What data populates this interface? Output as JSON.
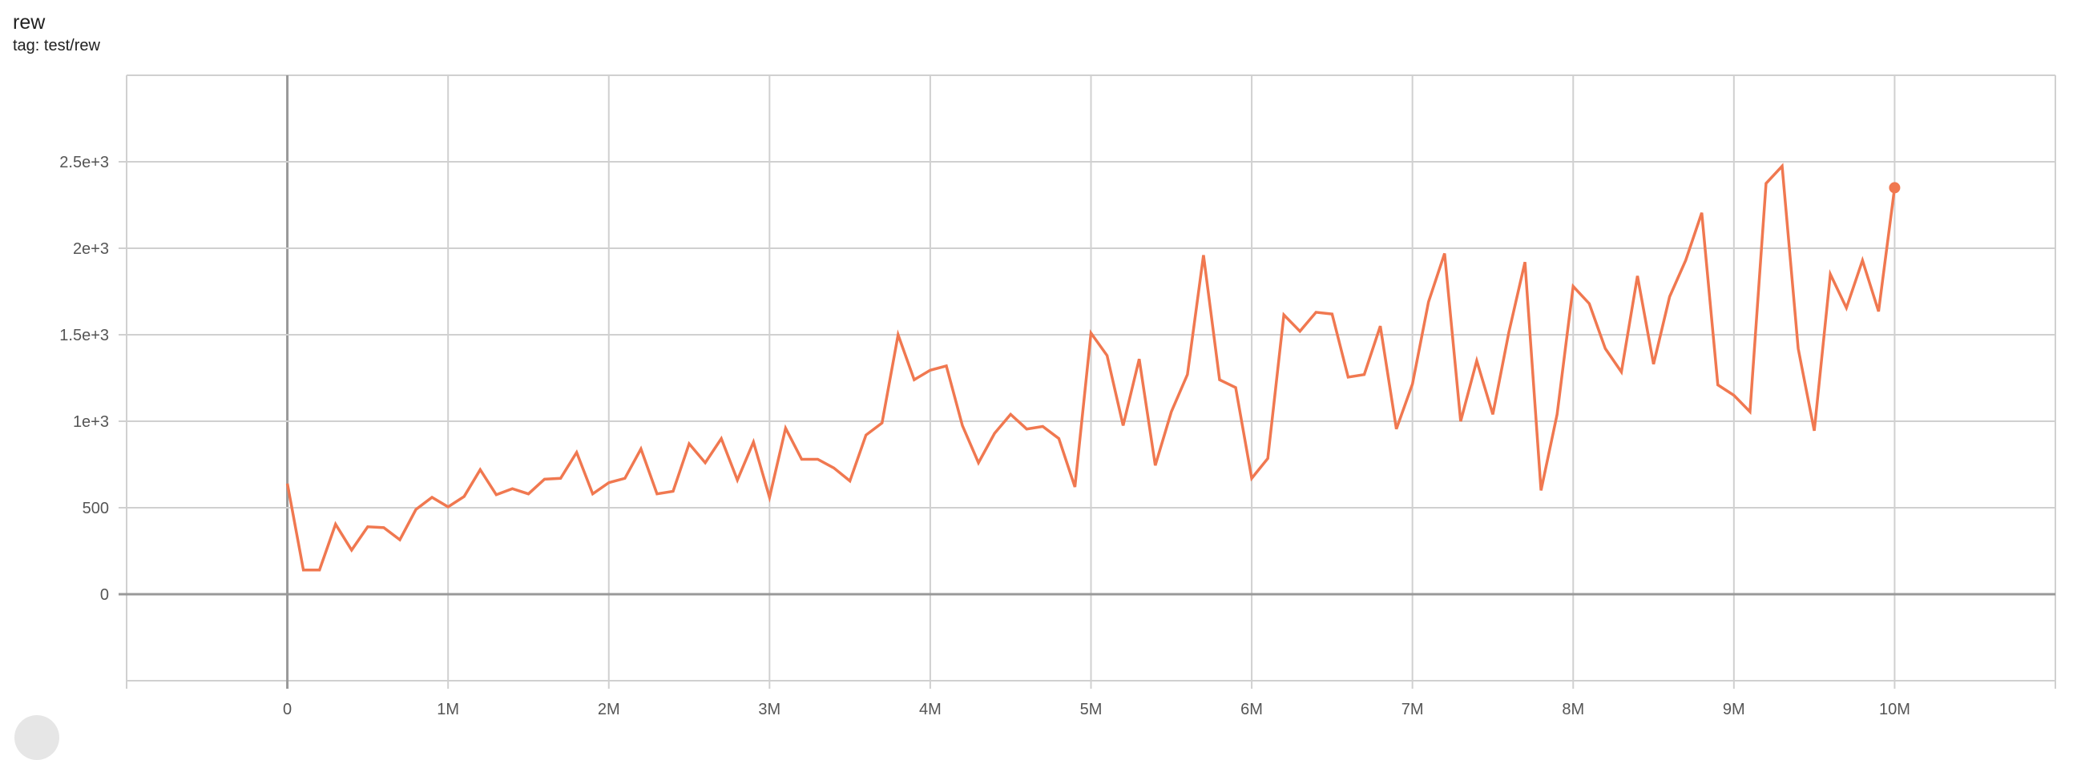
{
  "header": {
    "title": "rew",
    "tag": "tag: test/rew"
  },
  "colors": {
    "series": "#f07850",
    "grid": "#d0d0d0",
    "zero_axis": "#999999"
  },
  "chart_data": {
    "type": "line",
    "title": "rew",
    "subtitle": "tag: test/rew",
    "xlabel": "",
    "ylabel": "",
    "xlim": [
      -1000000,
      11000000
    ],
    "ylim": [
      -500,
      3000
    ],
    "grid": true,
    "x_ticks": [
      0,
      1000000,
      2000000,
      3000000,
      4000000,
      5000000,
      6000000,
      7000000,
      8000000,
      9000000,
      10000000
    ],
    "x_tick_labels": [
      "0",
      "1M",
      "2M",
      "3M",
      "4M",
      "5M",
      "6M",
      "7M",
      "8M",
      "9M",
      "10M"
    ],
    "y_ticks": [
      0,
      500,
      1000,
      1500,
      2000,
      2500
    ],
    "y_tick_labels": [
      "0",
      "500",
      "1e+3",
      "1.5e+3",
      "2e+3",
      "2.5e+3"
    ],
    "series": [
      {
        "x_step": 100000,
        "x_start": 0,
        "values": [
          640,
          140,
          140,
          405,
          255,
          390,
          385,
          315,
          490,
          560,
          505,
          565,
          720,
          575,
          610,
          580,
          665,
          670,
          820,
          580,
          645,
          670,
          840,
          580,
          595,
          870,
          760,
          900,
          660,
          880,
          560,
          960,
          780,
          780,
          730,
          655,
          920,
          990,
          1500,
          1240,
          1295,
          1320,
          975,
          760,
          930,
          1040,
          955,
          970,
          900,
          620,
          1510,
          1380,
          975,
          1360,
          745,
          1055,
          1270,
          1960,
          1240,
          1195,
          670,
          785,
          1615,
          1520,
          1630,
          1620,
          1255,
          1270,
          1550,
          955,
          1215,
          1690,
          1970,
          1000,
          1350,
          1040,
          1515,
          1920,
          600,
          1040,
          1780,
          1680,
          1420,
          1285,
          1840,
          1330,
          1720,
          1930,
          2205,
          1210,
          1150,
          1055,
          2375,
          2475,
          1420,
          945,
          1850,
          1655,
          1930,
          1635,
          2350
        ]
      }
    ]
  }
}
